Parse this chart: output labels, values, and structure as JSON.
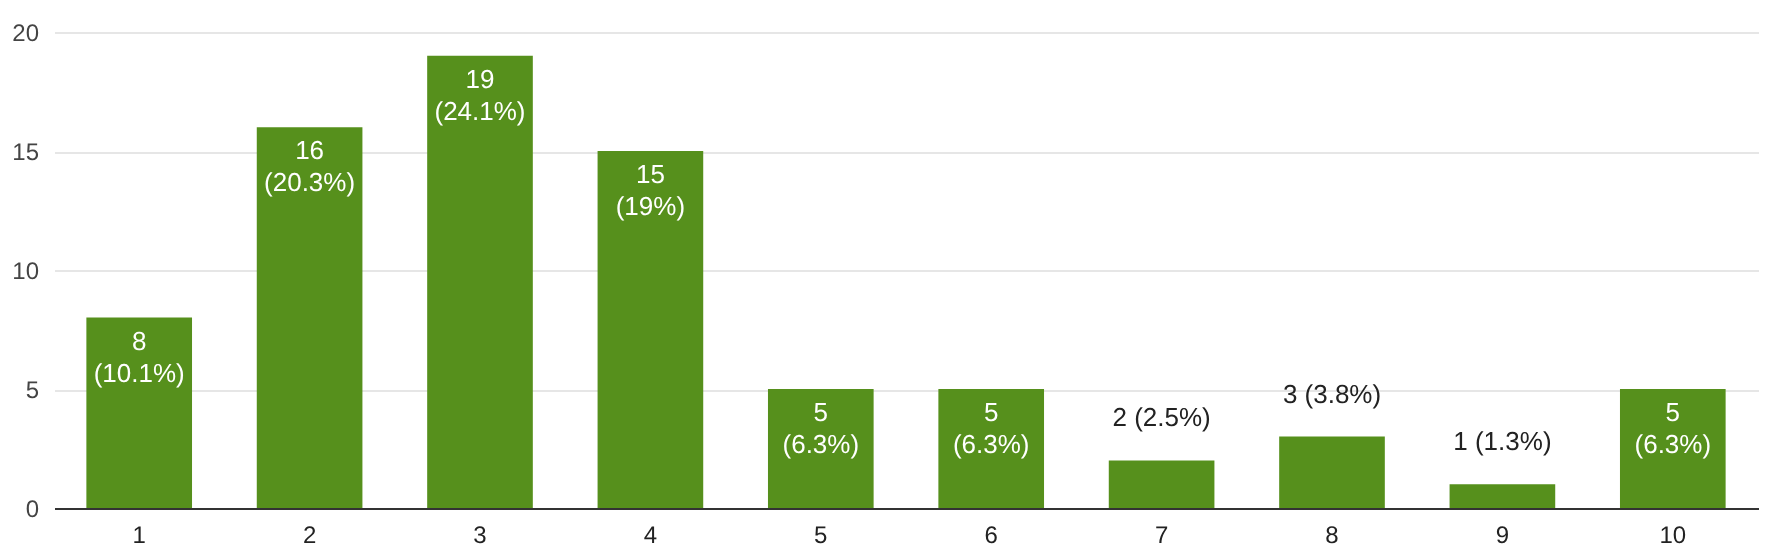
{
  "chart_data": {
    "type": "bar",
    "categories": [
      "1",
      "2",
      "3",
      "4",
      "5",
      "6",
      "7",
      "8",
      "9",
      "10"
    ],
    "values": [
      8,
      16,
      19,
      15,
      5,
      5,
      2,
      3,
      1,
      5
    ],
    "value_labels": [
      "8 (10.1%)",
      "16 (20.3%)",
      "19 (24.1%)",
      "15 (19%)",
      "5 (6.3%)",
      "5 (6.3%)",
      "2 (2.5%)",
      "3 (3.8%)",
      "1 (1.3%)",
      "5 (6.3%)"
    ],
    "color": "#56901c",
    "ylim": [
      0,
      20
    ],
    "yticks": [
      0,
      5,
      10,
      15,
      20
    ],
    "grid": "y"
  }
}
